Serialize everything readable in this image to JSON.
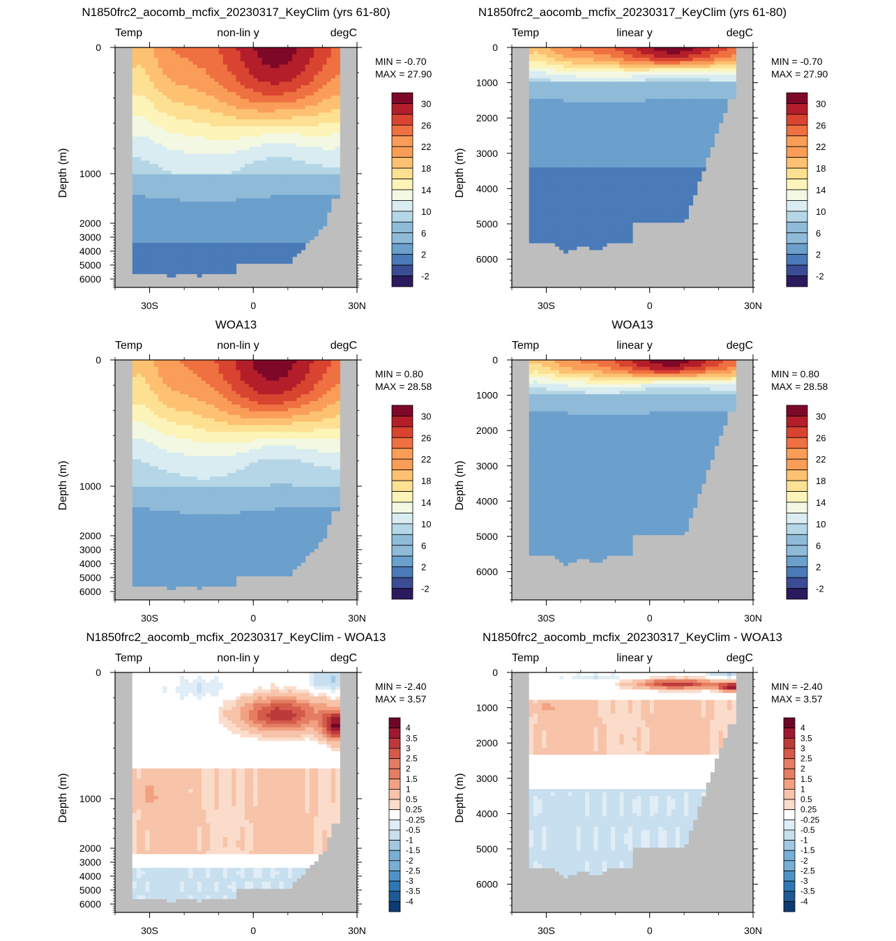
{
  "colors": {
    "land": "#bebebe",
    "temp_scale": [
      "#2b1a5e",
      "#3b4b94",
      "#4a7ab8",
      "#6b9fcc",
      "#8fbbd9",
      "#b5d6e6",
      "#d8ecf1",
      "#f2f8e2",
      "#fcf4b8",
      "#fee093",
      "#fdc171",
      "#f99d58",
      "#ef7040",
      "#d84430",
      "#b31e2a",
      "#7d0827"
    ],
    "diff_scale": [
      "#0d3b73",
      "#1d5a96",
      "#2f77b4",
      "#4d93c6",
      "#78afd6",
      "#a3c9e2",
      "#c7dfee",
      "#e0edf6",
      "#ffffff",
      "#fbdccb",
      "#f7c3a9",
      "#f2a283",
      "#e47d62",
      "#d45a4a",
      "#bd3a3b",
      "#9e1a31",
      "#6e0625"
    ]
  },
  "panels": [
    {
      "title": "N1850frc2_aocomb_mcfix_20230317_KeyClim (yrs 61-80)",
      "left_label": "Temp",
      "center_label": "non-lin y",
      "right_label": "degC",
      "ylabel": "Depth (m)",
      "min_text": "MIN =  -0.70",
      "max_text": "MAX =  27.90"
    },
    {
      "title": "N1850frc2_aocomb_mcfix_20230317_KeyClim (yrs 61-80)",
      "left_label": "Temp",
      "center_label": "linear y",
      "right_label": "degC",
      "ylabel": "Depth (m)",
      "min_text": "MIN =  -0.70",
      "max_text": "MAX =  27.90"
    },
    {
      "title": "WOA13",
      "left_label": "Temp",
      "center_label": "non-lin y",
      "right_label": "degC",
      "ylabel": "Depth (m)",
      "min_text": "MIN =   0.80",
      "max_text": "MAX =  28.58"
    },
    {
      "title": "WOA13",
      "left_label": "Temp",
      "center_label": "linear y",
      "right_label": "degC",
      "ylabel": "Depth (m)",
      "min_text": "MIN =   0.80",
      "max_text": "MAX =  28.58"
    },
    {
      "title": "N1850frc2_aocomb_mcfix_20230317_KeyClim - WOA13",
      "left_label": "Temp",
      "center_label": "non-lin y",
      "right_label": "degC",
      "ylabel": "Depth (m)",
      "min_text": "MIN =  -2.40",
      "max_text": "MAX =   3.57"
    },
    {
      "title": "N1850frc2_aocomb_mcfix_20230317_KeyClim - WOA13",
      "left_label": "Temp",
      "center_label": "linear y",
      "right_label": "degC",
      "ylabel": "Depth (m)",
      "min_text": "MIN =  -2.40",
      "max_text": "MAX =   3.57"
    }
  ],
  "chart_data": [
    {
      "type": "heatmap",
      "title": "N1850frc2_aocomb_mcfix_20230317_KeyClim (yrs 61-80)",
      "ylabel": "Depth (m)",
      "y_scale": "non-linear",
      "x_ticks": [
        "30S",
        "0",
        "30N"
      ],
      "y_ticks": [
        "0",
        "1000",
        "2000",
        "3000",
        "4000",
        "5000",
        "6000"
      ],
      "colorbar_labels": [
        "30",
        "26",
        "22",
        "18",
        "14",
        "10",
        "6",
        "2",
        "-2"
      ],
      "min": -0.7,
      "max": 27.9,
      "units": "degC"
    },
    {
      "type": "heatmap",
      "title": "N1850frc2_aocomb_mcfix_20230317_KeyClim (yrs 61-80)",
      "ylabel": "Depth (m)",
      "y_scale": "linear",
      "ylim": [
        0,
        6800
      ],
      "x_ticks": [
        "30S",
        "0",
        "30N"
      ],
      "y_ticks": [
        "0",
        "1000",
        "2000",
        "3000",
        "4000",
        "5000",
        "6000"
      ],
      "colorbar_labels": [
        "30",
        "26",
        "22",
        "18",
        "14",
        "10",
        "6",
        "2",
        "-2"
      ],
      "min": -0.7,
      "max": 27.9,
      "units": "degC"
    },
    {
      "type": "heatmap",
      "title": "WOA13",
      "ylabel": "Depth (m)",
      "y_scale": "non-linear",
      "x_ticks": [
        "30S",
        "0",
        "30N"
      ],
      "y_ticks": [
        "0",
        "1000",
        "2000",
        "3000",
        "4000",
        "5000",
        "6000"
      ],
      "colorbar_labels": [
        "30",
        "26",
        "22",
        "18",
        "14",
        "10",
        "6",
        "2",
        "-2"
      ],
      "min": 0.8,
      "max": 28.58,
      "units": "degC"
    },
    {
      "type": "heatmap",
      "title": "WOA13",
      "ylabel": "Depth (m)",
      "y_scale": "linear",
      "ylim": [
        0,
        6800
      ],
      "x_ticks": [
        "30S",
        "0",
        "30N"
      ],
      "y_ticks": [
        "0",
        "1000",
        "2000",
        "3000",
        "4000",
        "5000",
        "6000"
      ],
      "colorbar_labels": [
        "30",
        "26",
        "22",
        "18",
        "14",
        "10",
        "6",
        "2",
        "-2"
      ],
      "min": 0.8,
      "max": 28.58,
      "units": "degC"
    },
    {
      "type": "heatmap",
      "title": "N1850frc2_aocomb_mcfix_20230317_KeyClim - WOA13",
      "ylabel": "Depth (m)",
      "y_scale": "non-linear",
      "x_ticks": [
        "30S",
        "0",
        "30N"
      ],
      "y_ticks": [
        "0",
        "1000",
        "2000",
        "3000",
        "4000",
        "5000",
        "6000"
      ],
      "colorbar_labels": [
        "4",
        "3.5",
        "3",
        "2.5",
        "2",
        "1.5",
        "1",
        "0.5",
        "0.25",
        "-0.25",
        "-0.5",
        "-1",
        "-1.5",
        "-2",
        "-2.5",
        "-3",
        "-3.5",
        "-4"
      ],
      "min": -2.4,
      "max": 3.57,
      "units": "degC"
    },
    {
      "type": "heatmap",
      "title": "N1850frc2_aocomb_mcfix_20230317_KeyClim - WOA13",
      "ylabel": "Depth (m)",
      "y_scale": "linear",
      "ylim": [
        0,
        6800
      ],
      "x_ticks": [
        "30S",
        "0",
        "30N"
      ],
      "y_ticks": [
        "0",
        "1000",
        "2000",
        "3000",
        "4000",
        "5000",
        "6000"
      ],
      "colorbar_labels": [
        "4",
        "3.5",
        "3",
        "2.5",
        "2",
        "1.5",
        "1",
        "0.5",
        "0.25",
        "-0.25",
        "-0.5",
        "-1",
        "-1.5",
        "-2",
        "-2.5",
        "-3",
        "-3.5",
        "-4"
      ],
      "min": -2.4,
      "max": 3.57,
      "units": "degC"
    }
  ]
}
